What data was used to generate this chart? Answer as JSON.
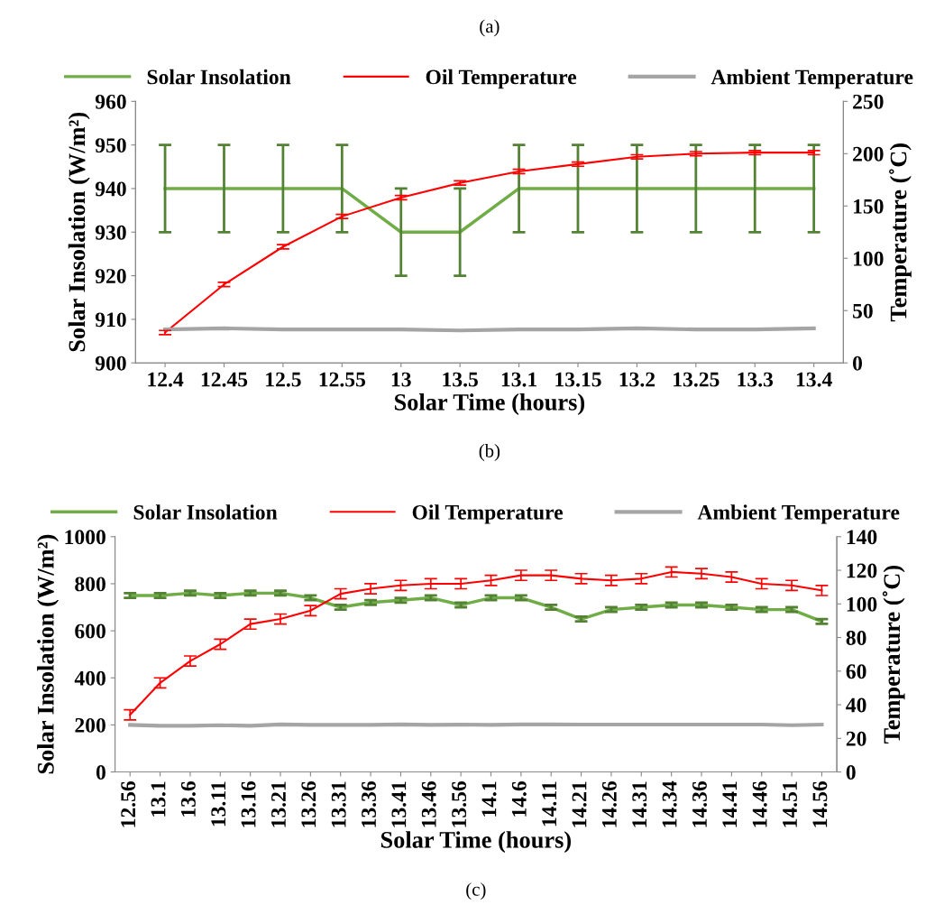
{
  "chart_data": [
    {
      "type": "line",
      "title": "(a)",
      "xlabel": "Solar Time (hours)",
      "ylabel": "Solar Insolation (W/m²)",
      "y2label": "Temperature (˚C)",
      "annotations": [
        "(b)"
      ],
      "categories": [
        "12.4",
        "12.45",
        "12.5",
        "12.55",
        "13",
        "13.5",
        "13.1",
        "13.15",
        "13.2",
        "13.25",
        "13.3",
        "13.4"
      ],
      "series": [
        {
          "name": "Solar Insolation",
          "color": "#70ad47",
          "values": [
            940,
            940,
            940,
            940,
            930,
            930,
            940,
            940,
            940,
            940,
            940,
            940
          ],
          "errors": [
            10,
            10,
            10,
            10,
            10,
            10,
            10,
            10,
            10,
            10,
            10,
            10
          ]
        },
        {
          "name": "Oil Temperature",
          "color": "#ff0000",
          "axis": "y2",
          "values": [
            29,
            75,
            111,
            140,
            158,
            172,
            183,
            190,
            197,
            200,
            201,
            201
          ],
          "errors": [
            2,
            2,
            2,
            2,
            2,
            2,
            2,
            2,
            2,
            2,
            2,
            2
          ]
        },
        {
          "name": "Ambient Temperature",
          "color": "#a5a5a5",
          "axis": "y2",
          "values": [
            32,
            33,
            32,
            32,
            32,
            31,
            32,
            32,
            33,
            32,
            32,
            33
          ]
        }
      ],
      "ylim": [
        900,
        960
      ],
      "yticks": [
        900,
        910,
        920,
        930,
        940,
        950,
        960
      ],
      "y2lim": [
        0,
        250
      ],
      "y2ticks": [
        0,
        50,
        100,
        150,
        200,
        250
      ],
      "legend": "top",
      "grid": false,
      "marker": "none",
      "line_style": "solid"
    },
    {
      "type": "line",
      "xlabel": "Solar Time (hours)",
      "ylabel": "Solar Insolation (W/m²)",
      "y2label": "Temperature (˚C)",
      "annotations": [
        "(c)"
      ],
      "categories": [
        "12.56",
        "13.1",
        "13.6",
        "13.11",
        "13.16",
        "13.21",
        "13.26",
        "13.31",
        "13.36",
        "13.41",
        "13.46",
        "13.56",
        "14.1",
        "14.6",
        "14.11",
        "14.21",
        "14.26",
        "14.31",
        "14.34",
        "14.36",
        "14.41",
        "14.46",
        "14.51",
        "14.56"
      ],
      "series": [
        {
          "name": "Solar Insolation",
          "color": "#70ad47",
          "values": [
            750,
            750,
            760,
            750,
            760,
            760,
            740,
            700,
            720,
            730,
            740,
            710,
            740,
            740,
            700,
            650,
            690,
            700,
            710,
            710,
            700,
            690,
            690,
            640
          ],
          "errors": [
            10,
            10,
            10,
            10,
            10,
            10,
            10,
            10,
            10,
            10,
            10,
            10,
            10,
            10,
            10,
            10,
            10,
            10,
            10,
            10,
            10,
            10,
            10,
            10
          ]
        },
        {
          "name": "Oil Temperature",
          "color": "#ff0000",
          "axis": "y2",
          "values": [
            34,
            53,
            66,
            76,
            88,
            91,
            96,
            106,
            109,
            111,
            112,
            112,
            114,
            117,
            117,
            115,
            114,
            115,
            119,
            118,
            116,
            112,
            111,
            108
          ],
          "errors": [
            3,
            3,
            3,
            3,
            3,
            3,
            3,
            3,
            3,
            3,
            3,
            3,
            3,
            3,
            3,
            3,
            3,
            3,
            3,
            3,
            3,
            3,
            3,
            3
          ]
        },
        {
          "name": "Ambient Temperature",
          "color": "#a5a5a5",
          "axis": "y2",
          "values": [
            28,
            27.5,
            27.5,
            27.8,
            27.5,
            28.3,
            28,
            28,
            28,
            28.3,
            28,
            28.2,
            28,
            28.3,
            28.3,
            28.2,
            28.2,
            28.2,
            28.2,
            28.2,
            28.2,
            28.2,
            27.8,
            28.2
          ]
        }
      ],
      "ylim": [
        0,
        1000
      ],
      "yticks": [
        0,
        200,
        400,
        600,
        800,
        1000
      ],
      "y2lim": [
        0,
        140
      ],
      "y2ticks": [
        0,
        20,
        40,
        60,
        80,
        100,
        120,
        140
      ],
      "legend": "top",
      "grid": false,
      "marker": "none",
      "line_style": "solid"
    }
  ]
}
